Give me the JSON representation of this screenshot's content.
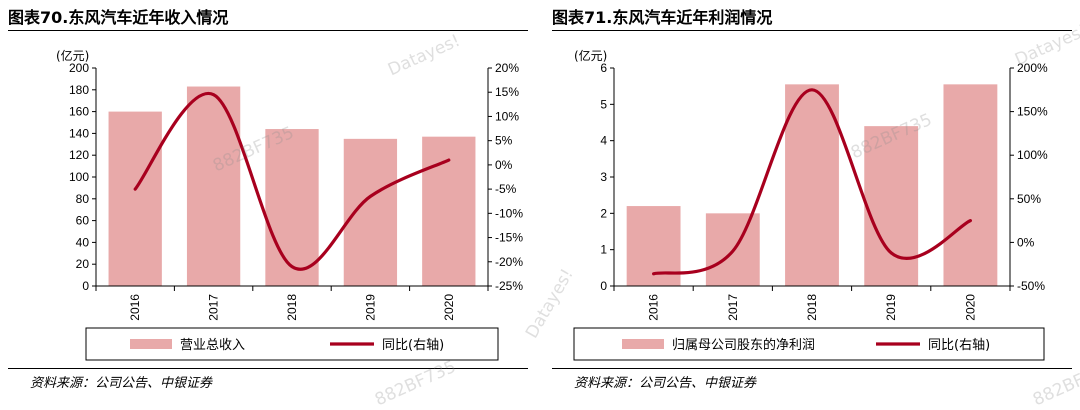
{
  "colors": {
    "bar": "#e8a9a9",
    "line": "#a8001e",
    "axis": "#000000"
  },
  "watermarks": [
    "Datayes!",
    "882BF735"
  ],
  "left": {
    "title": "图表70.东风汽车近年收入情况",
    "source": "资料来源：公司公告、中银证券",
    "chart_data": {
      "type": "bar",
      "categories": [
        "2016",
        "2017",
        "2018",
        "2019",
        "2020"
      ],
      "y_unit": "(亿元)",
      "ylim": [
        0,
        200
      ],
      "yticks": [
        "0",
        "20",
        "40",
        "60",
        "80",
        "100",
        "120",
        "140",
        "160",
        "180",
        "200"
      ],
      "y2lim": [
        -25,
        20
      ],
      "y2ticks": [
        "-25%",
        "-20%",
        "-15%",
        "-10%",
        "-5%",
        "0%",
        "5%",
        "10%",
        "15%",
        "20%"
      ],
      "series": [
        {
          "name": "营业总收入",
          "type": "bar",
          "axis": "left",
          "values": [
            160,
            183,
            144,
            135,
            137
          ]
        },
        {
          "name": "同比(右轴)",
          "type": "line",
          "axis": "right",
          "values": [
            -5,
            14.5,
            -21,
            -6.5,
            1
          ]
        }
      ]
    }
  },
  "right": {
    "title": "图表71.东风汽车近年利润情况",
    "source": "资料来源：公司公告、中银证券",
    "chart_data": {
      "type": "bar",
      "categories": [
        "2016",
        "2017",
        "2018",
        "2019",
        "2020"
      ],
      "y_unit": "(亿元)",
      "ylim": [
        0,
        6
      ],
      "yticks": [
        "0",
        "1",
        "2",
        "3",
        "4",
        "5",
        "6"
      ],
      "y2lim": [
        -50,
        200
      ],
      "y2ticks": [
        "-50%",
        "0%",
        "50%",
        "100%",
        "150%",
        "200%"
      ],
      "series": [
        {
          "name": "归属母公司股东的净利润",
          "type": "bar",
          "axis": "left",
          "values": [
            2.2,
            2.0,
            5.55,
            4.4,
            5.55
          ]
        },
        {
          "name": "同比(右轴)",
          "type": "line",
          "axis": "right",
          "values": [
            -36,
            -10,
            175,
            -12,
            25
          ]
        }
      ]
    }
  }
}
